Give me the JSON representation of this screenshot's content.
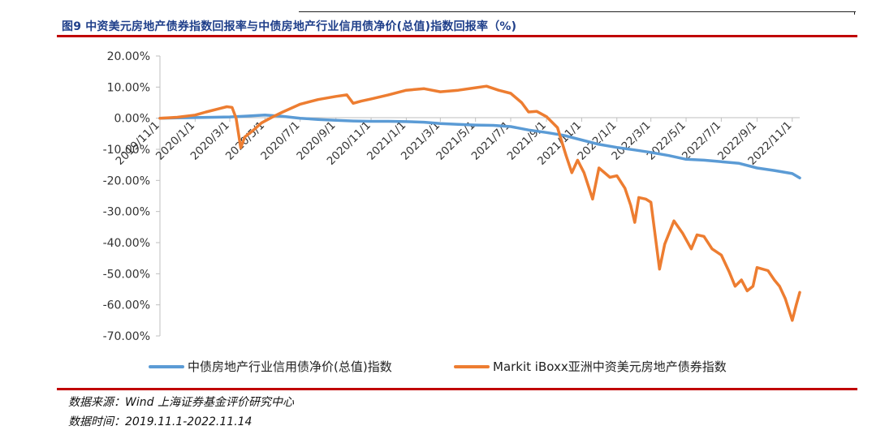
{
  "figure": {
    "title": "图9 中资美元房地产债券指数回报率与中债房地产行业信用债净价(总值)指数回报率（%)",
    "source_note": "数据来源：Wind 上海证券基金评价研究中心",
    "date_note": "数据时间：2019.11.1-2022.11.14"
  },
  "colors": {
    "accent_rule": "#c00000",
    "title": "#1f3f8a",
    "series_blue": "#5b9bd5",
    "series_orange": "#ed7d31"
  },
  "chart_data": {
    "type": "line",
    "title": "",
    "xlabel": "",
    "ylabel": "",
    "ylim": [
      -70,
      20
    ],
    "y_ticks": [
      20,
      10,
      0,
      -10,
      -20,
      -30,
      -40,
      -50,
      -60,
      -70
    ],
    "y_tick_labels": [
      "20.00%",
      "10.00%",
      "0.00%",
      "-10.00%",
      "-20.00%",
      "-30.00%",
      "-40.00%",
      "-50.00%",
      "-60.00%",
      "-70.00%"
    ],
    "x_start": "2019-11-01",
    "x_end": "2022-11-14",
    "x_tick_labels": [
      "2019/11/1",
      "2020/1/1",
      "2020/3/1",
      "2020/5/1",
      "2020/7/1",
      "2020/9/1",
      "2020/11/1",
      "2021/1/1",
      "2021/3/1",
      "2021/5/1",
      "2021/7/1",
      "2021/9/1",
      "2021/11/1",
      "2022/1/1",
      "2022/3/1",
      "2022/5/1",
      "2022/7/1",
      "2022/9/1",
      "2022/11/1"
    ],
    "x_tick_dates": [
      "2019-11-01",
      "2020-01-01",
      "2020-03-01",
      "2020-05-01",
      "2020-07-01",
      "2020-09-01",
      "2020-11-01",
      "2021-01-01",
      "2021-03-01",
      "2021-05-01",
      "2021-07-01",
      "2021-09-01",
      "2021-11-01",
      "2022-01-01",
      "2022-03-01",
      "2022-05-01",
      "2022-07-01",
      "2022-09-01",
      "2022-11-01"
    ],
    "legend_position": "bottom",
    "grid": false,
    "series": [
      {
        "name": "中债房地产行业信用债净价(总值)指数",
        "color": "#5b9bd5",
        "points": [
          [
            "2019-11-01",
            0.0
          ],
          [
            "2019-12-01",
            0.1
          ],
          [
            "2020-01-01",
            0.2
          ],
          [
            "2020-02-01",
            0.3
          ],
          [
            "2020-03-01",
            0.4
          ],
          [
            "2020-04-01",
            0.7
          ],
          [
            "2020-05-01",
            1.0
          ],
          [
            "2020-06-01",
            0.6
          ],
          [
            "2020-07-01",
            0.0
          ],
          [
            "2020-08-01",
            -0.4
          ],
          [
            "2020-09-01",
            -0.7
          ],
          [
            "2020-10-01",
            -0.9
          ],
          [
            "2020-11-01",
            -1.0
          ],
          [
            "2020-12-01",
            -1.0
          ],
          [
            "2021-01-01",
            -1.1
          ],
          [
            "2021-02-01",
            -1.3
          ],
          [
            "2021-03-01",
            -1.7
          ],
          [
            "2021-04-01",
            -2.0
          ],
          [
            "2021-05-01",
            -2.2
          ],
          [
            "2021-06-01",
            -2.3
          ],
          [
            "2021-07-01",
            -2.7
          ],
          [
            "2021-08-01",
            -3.8
          ],
          [
            "2021-09-01",
            -4.6
          ],
          [
            "2021-10-01",
            -5.5
          ],
          [
            "2021-11-01",
            -7.0
          ],
          [
            "2021-12-01",
            -8.4
          ],
          [
            "2022-01-01",
            -9.4
          ],
          [
            "2022-02-01",
            -10.2
          ],
          [
            "2022-03-01",
            -11.0
          ],
          [
            "2022-04-01",
            -12.0
          ],
          [
            "2022-05-01",
            -13.2
          ],
          [
            "2022-06-01",
            -13.5
          ],
          [
            "2022-07-01",
            -14.0
          ],
          [
            "2022-08-01",
            -14.5
          ],
          [
            "2022-09-01",
            -16.0
          ],
          [
            "2022-10-01",
            -16.8
          ],
          [
            "2022-11-01",
            -17.8
          ],
          [
            "2022-11-14",
            -19.2
          ]
        ]
      },
      {
        "name": "Markit iBoxx亚洲中资美元房地产债券指数",
        "color": "#ed7d31",
        "points": [
          [
            "2019-11-01",
            0.0
          ],
          [
            "2019-12-01",
            0.3
          ],
          [
            "2020-01-01",
            1.0
          ],
          [
            "2020-01-20",
            2.0
          ],
          [
            "2020-02-10",
            3.0
          ],
          [
            "2020-02-25",
            3.7
          ],
          [
            "2020-03-05",
            3.5
          ],
          [
            "2020-03-12",
            0.0
          ],
          [
            "2020-03-20",
            -9.5
          ],
          [
            "2020-03-27",
            -6.0
          ],
          [
            "2020-04-10",
            -4.0
          ],
          [
            "2020-04-25",
            -1.5
          ],
          [
            "2020-05-15",
            0.5
          ],
          [
            "2020-06-01",
            2.0
          ],
          [
            "2020-07-01",
            4.5
          ],
          [
            "2020-08-01",
            6.0
          ],
          [
            "2020-09-01",
            7.0
          ],
          [
            "2020-09-20",
            7.5
          ],
          [
            "2020-10-01",
            4.8
          ],
          [
            "2020-10-15",
            5.5
          ],
          [
            "2020-11-01",
            6.2
          ],
          [
            "2020-12-01",
            7.5
          ],
          [
            "2021-01-01",
            9.0
          ],
          [
            "2021-02-01",
            9.5
          ],
          [
            "2021-03-01",
            8.5
          ],
          [
            "2021-04-01",
            9.0
          ],
          [
            "2021-05-01",
            9.8
          ],
          [
            "2021-05-20",
            10.3
          ],
          [
            "2021-06-10",
            9.0
          ],
          [
            "2021-07-01",
            8.0
          ],
          [
            "2021-07-20",
            5.0
          ],
          [
            "2021-08-01",
            2.0
          ],
          [
            "2021-08-15",
            2.2
          ],
          [
            "2021-09-01",
            0.5
          ],
          [
            "2021-09-20",
            -3.0
          ],
          [
            "2021-10-05",
            -12.0
          ],
          [
            "2021-10-15",
            -17.5
          ],
          [
            "2021-10-25",
            -13.5
          ],
          [
            "2021-11-05",
            -17.5
          ],
          [
            "2021-11-20",
            -26.0
          ],
          [
            "2021-12-01",
            -16.0
          ],
          [
            "2021-12-20",
            -19.0
          ],
          [
            "2022-01-01",
            -18.5
          ],
          [
            "2022-01-15",
            -22.5
          ],
          [
            "2022-01-25",
            -28.0
          ],
          [
            "2022-02-01",
            -33.5
          ],
          [
            "2022-02-08",
            -25.5
          ],
          [
            "2022-02-20",
            -26.0
          ],
          [
            "2022-03-01",
            -27.0
          ],
          [
            "2022-03-10",
            -40.0
          ],
          [
            "2022-03-16",
            -48.5
          ],
          [
            "2022-03-25",
            -40.5
          ],
          [
            "2022-04-10",
            -33.0
          ],
          [
            "2022-04-25",
            -37.0
          ],
          [
            "2022-05-10",
            -42.0
          ],
          [
            "2022-05-20",
            -37.5
          ],
          [
            "2022-06-01",
            -38.0
          ],
          [
            "2022-06-15",
            -42.0
          ],
          [
            "2022-07-01",
            -44.0
          ],
          [
            "2022-07-15",
            -49.5
          ],
          [
            "2022-07-25",
            -54.0
          ],
          [
            "2022-08-05",
            -52.0
          ],
          [
            "2022-08-15",
            -55.5
          ],
          [
            "2022-08-25",
            -54.0
          ],
          [
            "2022-09-01",
            -48.0
          ],
          [
            "2022-09-20",
            -49.0
          ],
          [
            "2022-10-01",
            -52.0
          ],
          [
            "2022-10-10",
            -54.0
          ],
          [
            "2022-10-20",
            -58.0
          ],
          [
            "2022-11-01",
            -65.0
          ],
          [
            "2022-11-08",
            -60.0
          ],
          [
            "2022-11-14",
            -56.0
          ]
        ]
      }
    ]
  }
}
